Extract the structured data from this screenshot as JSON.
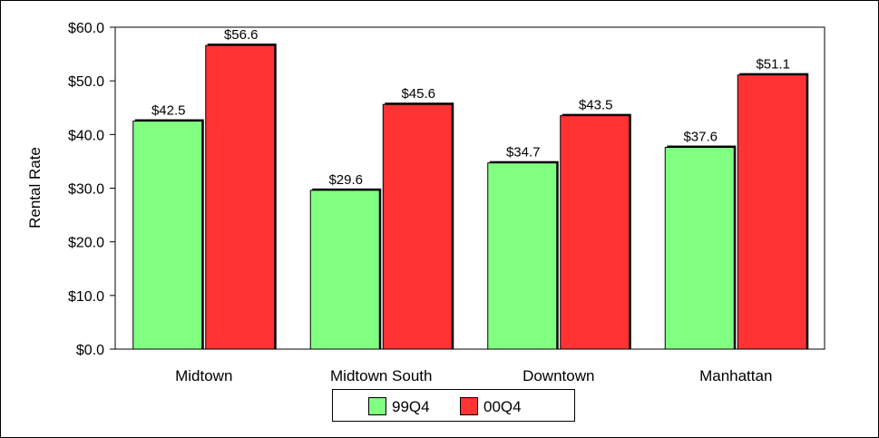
{
  "chart_data": {
    "type": "bar",
    "title": "",
    "xlabel": "",
    "ylabel": "Rental Rate",
    "categories": [
      "Midtown",
      "Midtown South",
      "Downtown",
      "Manhattan"
    ],
    "series": [
      {
        "name": "99Q4",
        "color": "#80ff80",
        "values": [
          42.5,
          29.6,
          34.7,
          37.6
        ],
        "labels": [
          "$42.5",
          "$29.6",
          "$34.7",
          "$37.6"
        ]
      },
      {
        "name": "00Q4",
        "color": "#ff3333",
        "values": [
          56.6,
          45.6,
          43.5,
          51.1
        ],
        "labels": [
          "$56.6",
          "$45.6",
          "$43.5",
          "$51.1"
        ]
      }
    ],
    "ylim": [
      0,
      60
    ],
    "yticks": [
      0,
      10,
      20,
      30,
      40,
      50,
      60
    ],
    "ytick_labels": [
      "$0.0",
      "$10.0",
      "$20.0",
      "$30.0",
      "$40.0",
      "$50.0",
      "$60.0"
    ],
    "grid": false,
    "legend": "bottom-center"
  }
}
